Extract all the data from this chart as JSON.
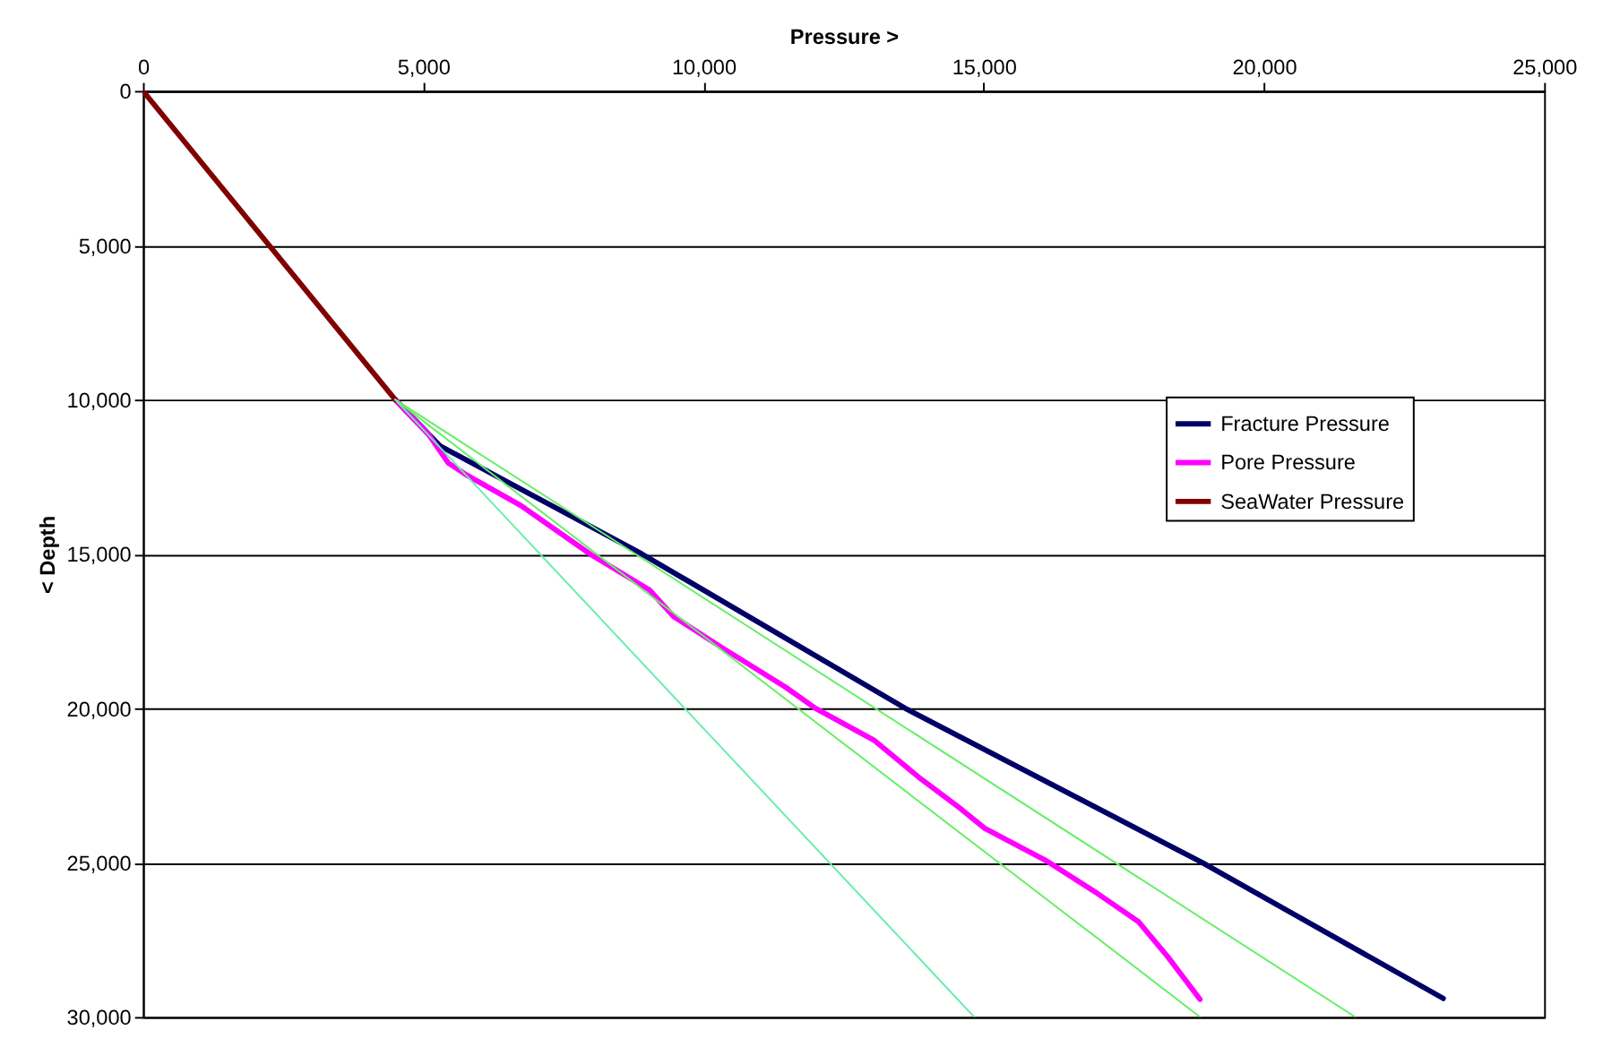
{
  "chart_data": {
    "type": "line",
    "xlabel": "Pressure >",
    "ylabel": "< Depth",
    "xlim": [
      0,
      25000
    ],
    "xticks": [
      0,
      {
        "value": 5000,
        "label": "5,000"
      },
      {
        "value": 10000,
        "label": "10,000"
      },
      {
        "value": 15000,
        "label": "15,000"
      },
      {
        "value": 20000,
        "label": "20,000"
      },
      {
        "value": 25000,
        "label": "25,000"
      }
    ],
    "ylim": [
      30000,
      0
    ],
    "yticks": [
      0,
      {
        "value": 5000,
        "label": "5,000"
      },
      {
        "value": 10000,
        "label": "10,000"
      },
      {
        "value": 15000,
        "label": "15,000"
      },
      {
        "value": 20000,
        "label": "20,000"
      },
      {
        "value": 25000,
        "label": "25,000"
      },
      {
        "value": 30000,
        "label": "30,000"
      }
    ],
    "grid": "y",
    "legend": "right",
    "marker": "none",
    "line_style": "solid",
    "series": [
      {
        "name": "Fracture Pressure",
        "color": "#000066",
        "x": [
          4500,
          5300,
          8900,
          13600,
          18900,
          23200
        ],
        "values": [
          10000,
          11500,
          15000,
          20000,
          25000,
          29400
        ]
      },
      {
        "name": "Pore Pressure",
        "color": "#ff00ff",
        "x": [
          4500,
          5100,
          5450,
          5790,
          6740,
          8000,
          9040,
          9470,
          10300,
          11460,
          12000,
          13040,
          13880,
          14510,
          15020,
          16090,
          17030,
          17760,
          18290,
          18860
        ],
        "values": [
          10000,
          11140,
          12060,
          12460,
          13430,
          15030,
          16170,
          17030,
          18000,
          19310,
          20000,
          21030,
          22290,
          23140,
          23890,
          24910,
          26000,
          26910,
          28060,
          29430
        ]
      },
      {
        "name": "SeaWater Pressure",
        "color": "#800000",
        "x": [
          0,
          4500
        ],
        "values": [
          0,
          10000
        ]
      },
      {
        "color": "#66ee66",
        "x": [
          4500,
          21630
        ],
        "values": [
          10000,
          30000
        ]
      },
      {
        "color": "#66ee66",
        "x": [
          4500,
          18860
        ],
        "values": [
          10000,
          30000
        ]
      },
      {
        "color": "#66eeaa",
        "x": [
          4500,
          14830
        ],
        "values": [
          10000,
          30000
        ]
      }
    ]
  }
}
